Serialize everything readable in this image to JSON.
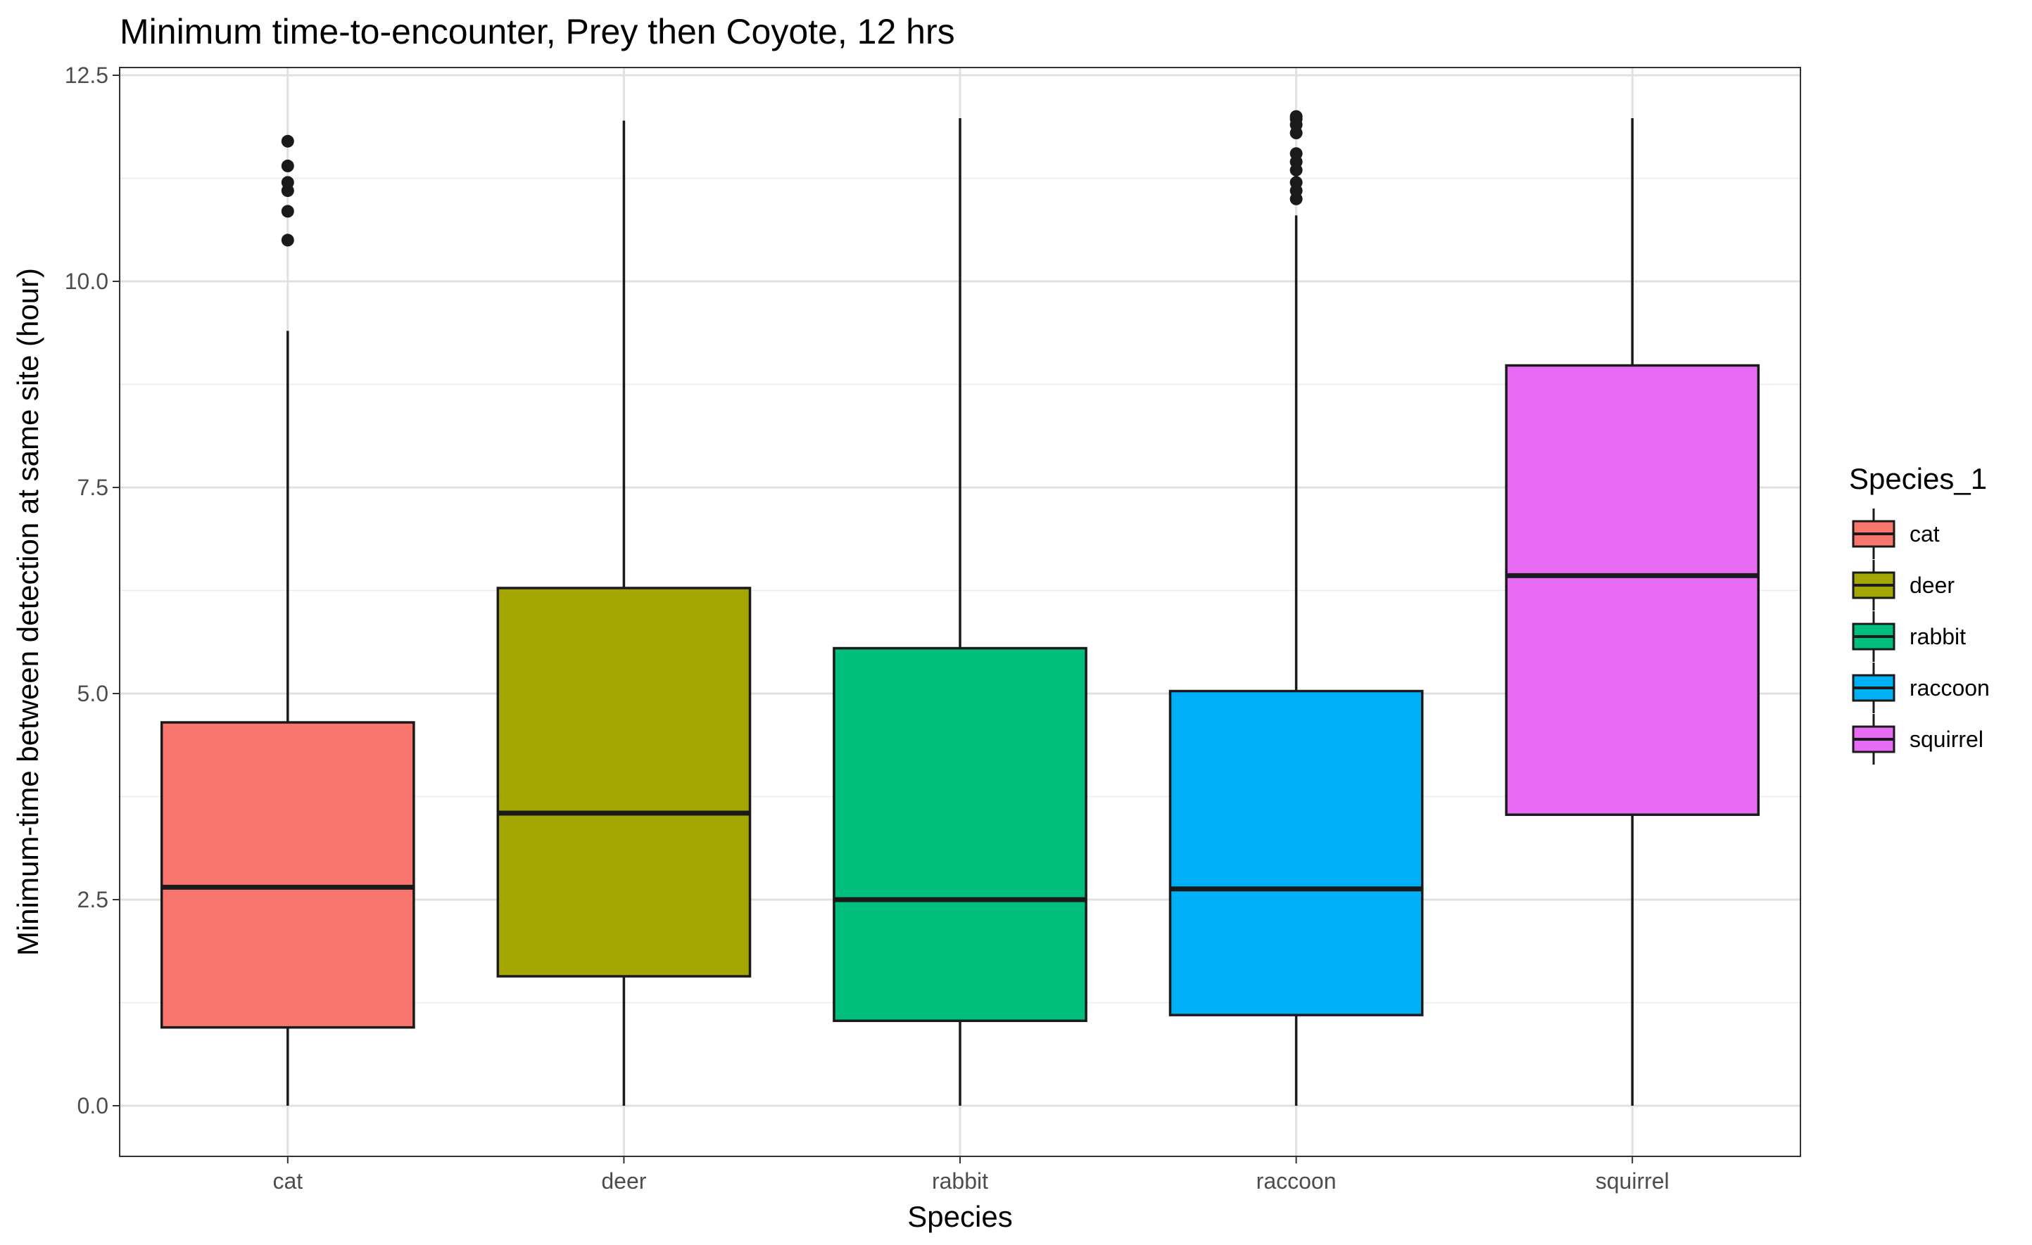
{
  "chart_data": {
    "type": "boxplot",
    "title": "Minimum time-to-encounter, Prey then Coyote, 12 hrs",
    "xlabel": "Species",
    "ylabel": "Minimum-time between detection at same site (hour)",
    "ylim": [
      -0.6,
      12.6
    ],
    "yticks": [
      0.0,
      2.5,
      5.0,
      7.5,
      10.0,
      12.5
    ],
    "ytick_labels": [
      "0.0",
      "2.5",
      "5.0",
      "7.5",
      "10.0",
      "12.5"
    ],
    "categories": [
      "cat",
      "deer",
      "rabbit",
      "raccoon",
      "squirrel"
    ],
    "grid": true,
    "legend": {
      "title": "Species_1",
      "position": "right",
      "entries": [
        "cat",
        "deer",
        "rabbit",
        "raccoon",
        "squirrel"
      ]
    },
    "colors": {
      "cat": "#F8766D",
      "deer": "#A3A500",
      "rabbit": "#00BF7D",
      "raccoon": "#00B0F6",
      "squirrel": "#E76BF3"
    },
    "boxes": [
      {
        "category": "cat",
        "min": 0.0,
        "q1": 0.95,
        "median": 2.65,
        "q3": 4.65,
        "max": 9.4,
        "outliers": [
          10.5,
          10.85,
          11.1,
          11.2,
          11.4,
          11.7
        ]
      },
      {
        "category": "deer",
        "min": 0.0,
        "q1": 1.57,
        "median": 3.55,
        "q3": 6.28,
        "max": 11.95,
        "outliers": []
      },
      {
        "category": "rabbit",
        "min": 0.0,
        "q1": 1.03,
        "median": 2.5,
        "q3": 5.55,
        "max": 11.98,
        "outliers": []
      },
      {
        "category": "raccoon",
        "min": 0.0,
        "q1": 1.1,
        "median": 2.63,
        "q3": 5.03,
        "max": 10.8,
        "outliers": [
          11.0,
          11.1,
          11.2,
          11.35,
          11.45,
          11.55,
          11.8,
          11.9,
          11.97,
          12.0
        ]
      },
      {
        "category": "squirrel",
        "min": 0.0,
        "q1": 3.53,
        "median": 6.43,
        "q3": 8.98,
        "max": 11.98,
        "outliers": []
      }
    ]
  }
}
